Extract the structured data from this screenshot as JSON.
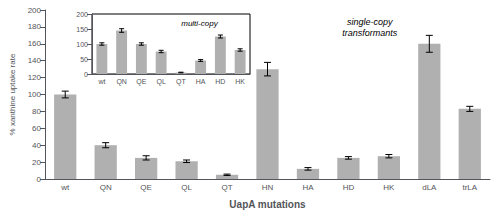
{
  "chart_data": [
    {
      "type": "bar",
      "xlabel": "UapA mutations",
      "ylabel": "% xanthine uptake rate",
      "annotation": "single-copy\ntransformants",
      "categories": [
        "wt",
        "QN",
        "QE",
        "QL",
        "QT",
        "HN",
        "HA",
        "HD",
        "HK",
        "dLA",
        "trLA"
      ],
      "values": [
        100,
        40,
        25,
        21,
        5,
        130,
        12,
        25,
        27,
        160,
        83
      ],
      "errors": [
        4,
        3,
        2.5,
        1.5,
        0.8,
        8,
        1.5,
        1.5,
        2,
        10,
        3
      ],
      "color": "#b0b0b0",
      "ylim": [
        0,
        200
      ],
      "yticks": [
        0,
        20,
        40,
        60,
        80,
        100,
        120,
        140,
        160,
        180,
        200
      ],
      "grid": false
    },
    {
      "type": "bar",
      "annotation": "multi-copy",
      "categories": [
        "wt",
        "QN",
        "QE",
        "QL",
        "QT",
        "HA",
        "HD",
        "HK"
      ],
      "values": [
        100,
        145,
        100,
        75,
        5,
        45,
        125,
        80
      ],
      "errors": [
        4,
        6,
        4,
        4,
        1,
        3,
        5,
        4
      ],
      "color": "#b0b0b0",
      "ylim": [
        0,
        200
      ],
      "yticks": [
        0,
        50,
        100,
        150,
        200
      ],
      "grid": false
    }
  ]
}
